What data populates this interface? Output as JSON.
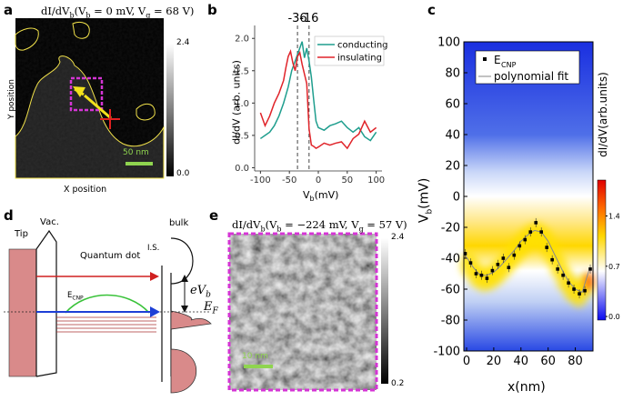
{
  "panel_labels": {
    "a": "a",
    "b": "b",
    "c": "c",
    "d": "d",
    "e": "e"
  },
  "panel_a": {
    "title": "dI/dV",
    "title_sub": "b",
    "title_params": "(V",
    "title_rest": " = 0 mV, V",
    "title_g": "g",
    "title_end": " = 68 V)",
    "y_axis": "Y position",
    "x_axis": "X position",
    "scalebar": "50 nm",
    "cbar_max": "2.4",
    "cbar_min": "0.0",
    "colors": {
      "contour": "#f0e04a",
      "box": "#d535d5",
      "arrow": "#f2e11c",
      "cross": "#e02020",
      "scalebar": "#8fd44f"
    }
  },
  "panel_e": {
    "title": "dI/dV",
    "title_sub": "b",
    "title_params": "(V",
    "title_rest": " = −224 mV, V",
    "title_g": "g",
    "title_end": " = 57 V)",
    "scalebar": "10 nm",
    "cbar_max": "2.4",
    "cbar_min": "0.2"
  },
  "panel_d": {
    "tip": "Tip",
    "vac": "Vac.",
    "bulk": "bulk",
    "qd": "Quantum dot",
    "is": "I.S.",
    "ecnp": "E",
    "ecnp_sub": "CNP",
    "ev": "eV",
    "ev_sub": "b",
    "ef": "E",
    "ef_sub": "F"
  },
  "chart_data": [
    {
      "id": "b",
      "type": "line",
      "title": "",
      "xlabel": "V",
      "xlabel_sub": "b",
      "xlabel_unit": "(mV)",
      "ylabel": "dI/dV (arb. units)",
      "xlim": [
        -110,
        110
      ],
      "ylim": [
        -0.05,
        2.2
      ],
      "xticks": [
        -100,
        -50,
        0,
        50,
        100
      ],
      "yticks": [
        0.0,
        0.5,
        1.0,
        1.5,
        2.0
      ],
      "markers": [
        {
          "x": -36,
          "label": "-36"
        },
        {
          "x": -16,
          "label": "-16"
        }
      ],
      "series": [
        {
          "name": "conducting",
          "color": "#1f9e8e",
          "x": [
            -100,
            -92,
            -84,
            -76,
            -68,
            -60,
            -52,
            -46,
            -40,
            -36,
            -32,
            -28,
            -24,
            -20,
            -16,
            -12,
            -8,
            -4,
            0,
            10,
            20,
            30,
            40,
            50,
            60,
            70,
            80,
            90,
            100
          ],
          "y": [
            0.45,
            0.5,
            0.55,
            0.65,
            0.8,
            1.0,
            1.25,
            1.5,
            1.65,
            1.75,
            1.85,
            1.95,
            1.7,
            1.85,
            1.65,
            1.4,
            1.05,
            0.72,
            0.62,
            0.58,
            0.65,
            0.68,
            0.72,
            0.62,
            0.55,
            0.62,
            0.48,
            0.42,
            0.55
          ]
        },
        {
          "name": "insulating",
          "color": "#e0242a",
          "x": [
            -100,
            -92,
            -84,
            -76,
            -68,
            -60,
            -56,
            -52,
            -48,
            -44,
            -40,
            -36,
            -32,
            -28,
            -24,
            -20,
            -16,
            -12,
            -8,
            -4,
            0,
            10,
            20,
            30,
            40,
            50,
            60,
            70,
            80,
            90,
            100
          ],
          "y": [
            0.85,
            0.65,
            0.8,
            1.0,
            1.15,
            1.35,
            1.55,
            1.72,
            1.8,
            1.62,
            1.5,
            1.72,
            1.78,
            1.6,
            1.45,
            1.3,
            0.6,
            0.35,
            0.33,
            0.3,
            0.32,
            0.38,
            0.35,
            0.38,
            0.4,
            0.3,
            0.45,
            0.52,
            0.72,
            0.55,
            0.62
          ]
        }
      ]
    },
    {
      "id": "c",
      "type": "heatmap",
      "xlabel": "x(nm)",
      "ylabel": "V",
      "ylabel_sub": "b",
      "ylabel_unit": "(mV)",
      "colorbar_label": "dI/dV(arb.units)",
      "xlim": [
        -2,
        93
      ],
      "ylim": [
        -100,
        100
      ],
      "xticks": [
        0,
        20,
        40,
        60,
        80
      ],
      "yticks": [
        -100,
        -80,
        -60,
        -40,
        -20,
        0,
        20,
        40,
        60,
        80,
        100
      ],
      "colorbar_ticks": [
        0.0,
        0.7,
        1.4
      ],
      "colorbar_range": [
        -0.05,
        1.9
      ],
      "legend": [
        {
          "name": "E",
          "sub": "CNP",
          "kind": "marker"
        },
        {
          "name": "polynomial fit",
          "kind": "line"
        }
      ],
      "ecnp_points": {
        "x": [
          -1,
          3,
          7,
          11,
          15,
          19,
          23,
          27,
          31,
          35,
          39,
          43,
          47,
          51,
          55,
          59,
          63,
          67,
          71,
          75,
          79,
          83,
          87,
          91
        ],
        "y": [
          -37,
          -43,
          -50,
          -51,
          -53,
          -48,
          -44,
          -40,
          -46,
          -38,
          -32,
          -28,
          -23,
          -17,
          -23,
          -33,
          -41,
          -47,
          -51,
          -56,
          -60,
          -63,
          -61,
          -47
        ]
      },
      "fit": {
        "x": [
          -1,
          5,
          10,
          15,
          20,
          25,
          30,
          35,
          40,
          45,
          50,
          55,
          60,
          65,
          70,
          75,
          80,
          85,
          90
        ],
        "y": [
          -38,
          -46,
          -51,
          -51,
          -49,
          -45,
          -40,
          -35,
          -29,
          -25,
          -22,
          -23,
          -29,
          -38,
          -47,
          -55,
          -60,
          -62,
          -48
        ]
      }
    }
  ]
}
